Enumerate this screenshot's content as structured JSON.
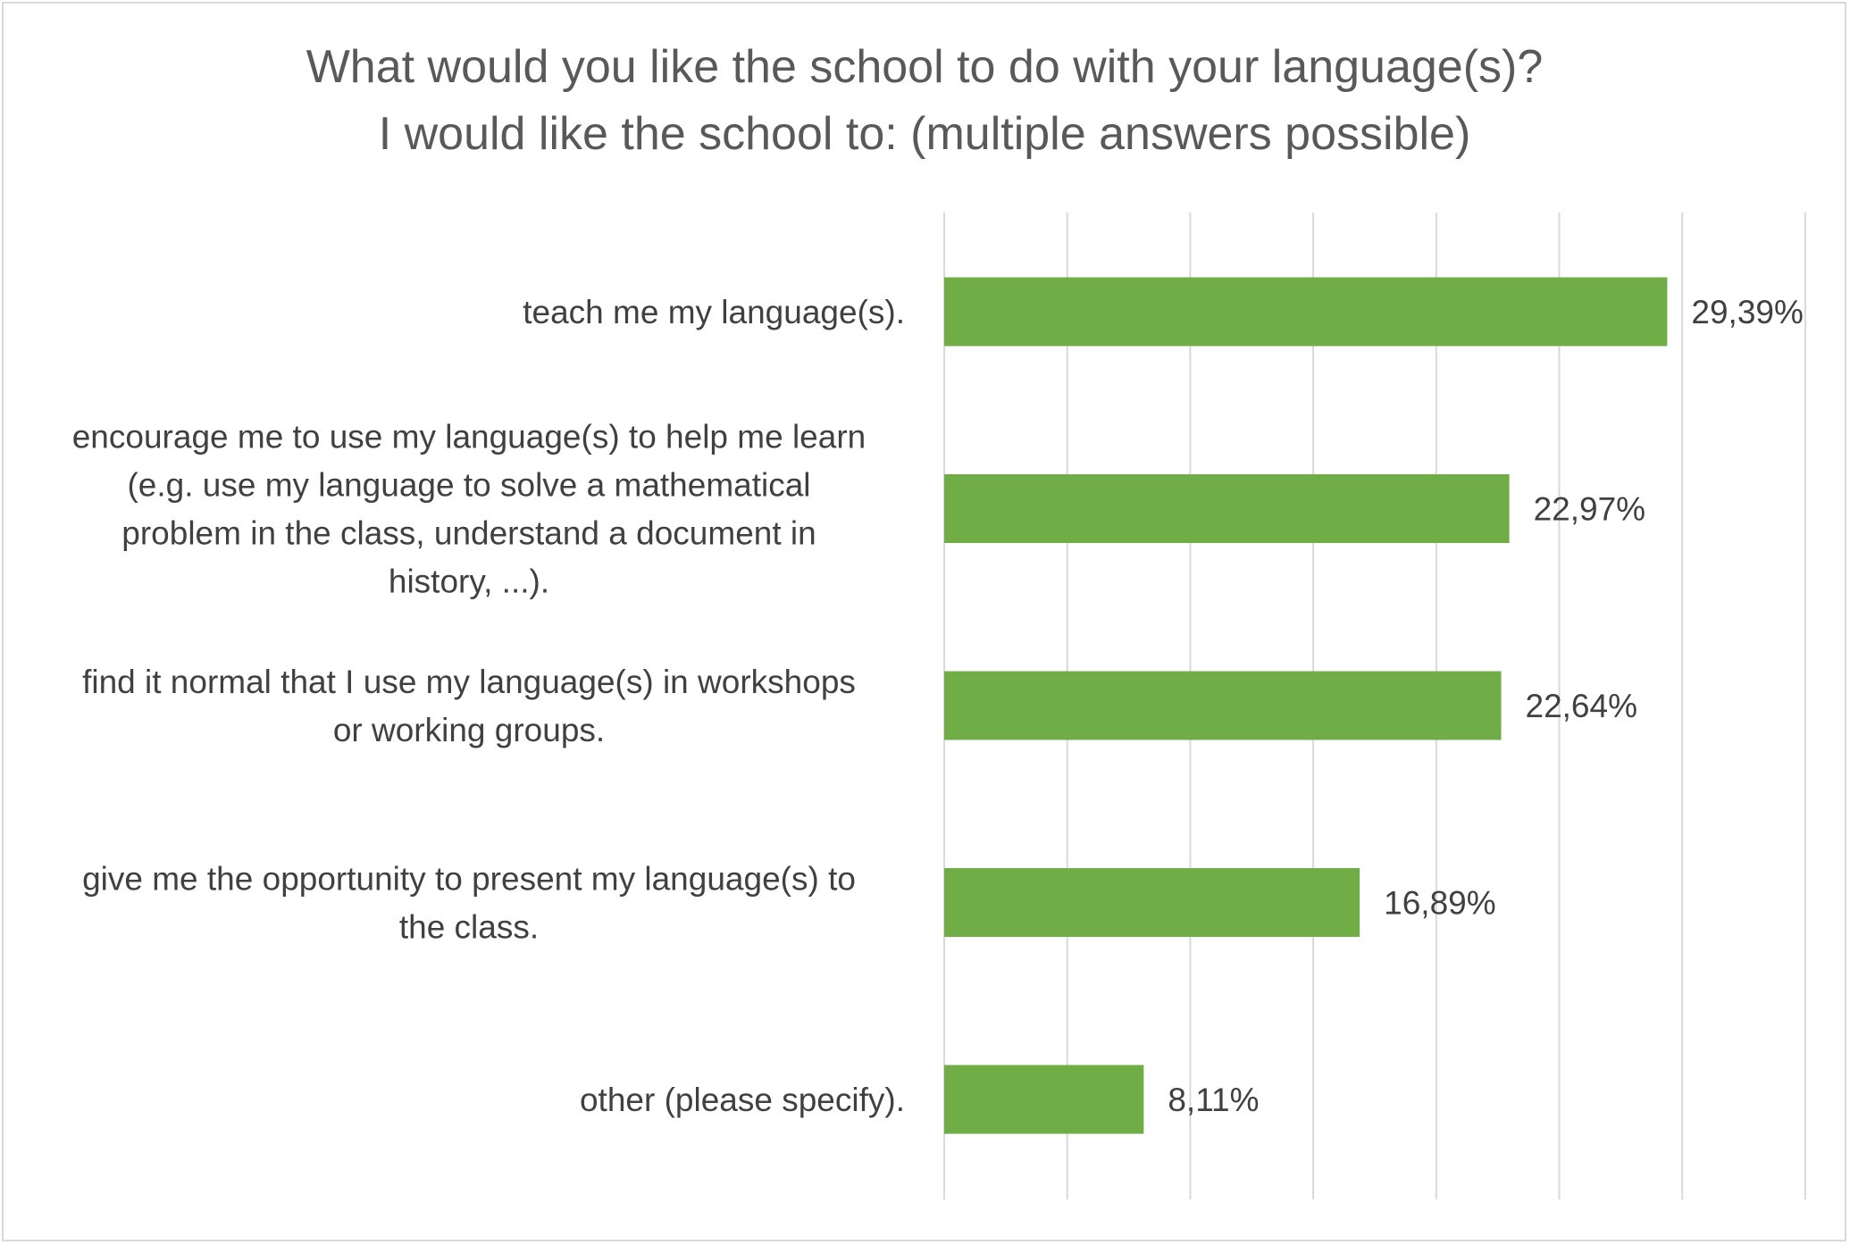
{
  "chart_data": {
    "type": "bar",
    "orientation": "horizontal",
    "title": [
      "What would you like the school to do with your language(s)?",
      "I would like the school to: (multiple answers possible)"
    ],
    "categories": [
      [
        "teach me my language(s)."
      ],
      [
        "encourage me to use my language(s) to help me learn",
        "(e.g. use my language to solve a mathematical",
        "problem in the class, understand a document in",
        "history, ...)."
      ],
      [
        "find it normal that I use my language(s) in workshops",
        "or working groups."
      ],
      [
        "give me the opportunity to present my language(s) to",
        "the class."
      ],
      [
        "other (please specify)."
      ]
    ],
    "values": [
      29.39,
      22.97,
      22.64,
      16.89,
      8.11
    ],
    "data_labels": [
      "29,39%",
      "22,97%",
      "22,64%",
      "16,89%",
      "8,11%"
    ],
    "xlim": [
      0,
      35
    ],
    "grid": "vertical",
    "legend": "none",
    "colors": {
      "bar": "#70ad47",
      "gridline": "#d9d9d9",
      "text": "#404040",
      "title": "#595959",
      "border": "#d9d9d9"
    }
  }
}
